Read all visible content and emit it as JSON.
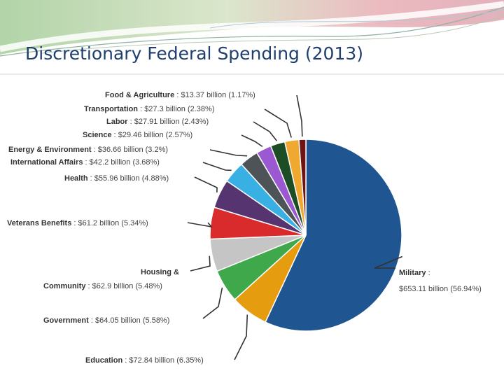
{
  "slide": {
    "title": "Discretionary Federal Spending (2013)"
  },
  "chart_data": {
    "type": "pie",
    "title": "",
    "slices": [
      {
        "name": "Military",
        "value": 653.11,
        "value_text": "$653.11 billion",
        "percent_text": "(56.94%)",
        "color": "#1f5591"
      },
      {
        "name": "Education",
        "value": 72.84,
        "value_text": "$72.84 billion",
        "percent_text": "(6.35%)",
        "color": "#e59c0f"
      },
      {
        "name": "Government",
        "value": 64.05,
        "value_text": "$64.05 billion",
        "percent_text": "(5.58%)",
        "color": "#3ea84a"
      },
      {
        "name": "Housing & Community",
        "value": 62.9,
        "value_text": "$62.9 billion",
        "percent_text": "(5.48%)",
        "color": "#c5c5c5"
      },
      {
        "name": "Veterans Benefits",
        "value": 61.2,
        "value_text": "$61.2 billion",
        "percent_text": "(5.34%)",
        "color": "#d92a2c"
      },
      {
        "name": "Health",
        "value": 55.96,
        "value_text": "$55.96 billion",
        "percent_text": "(4.88%)",
        "color": "#55346f"
      },
      {
        "name": "International Affairs",
        "value": 42.2,
        "value_text": "$42.2 billion",
        "percent_text": "(3.68%)",
        "color": "#39b0e4"
      },
      {
        "name": "Energy & Environment",
        "value": 36.66,
        "value_text": "$36.66 billion",
        "percent_text": "(3.2%)",
        "color": "#4e5357"
      },
      {
        "name": "Science",
        "value": 29.46,
        "value_text": "$29.46 billion",
        "percent_text": "(2.57%)",
        "color": "#9b59d1"
      },
      {
        "name": "Labor",
        "value": 27.91,
        "value_text": "$27.91 billion",
        "percent_text": "(2.43%)",
        "color": "#1d4d25"
      },
      {
        "name": "Transportation",
        "value": 27.3,
        "value_text": "$27.3 billion",
        "percent_text": "(2.38%)",
        "color": "#f0a830"
      },
      {
        "name": "Food & Agriculture",
        "value": 13.37,
        "value_text": "$13.37 billion",
        "percent_text": "(1.17%)",
        "color": "#6f1414"
      }
    ]
  }
}
